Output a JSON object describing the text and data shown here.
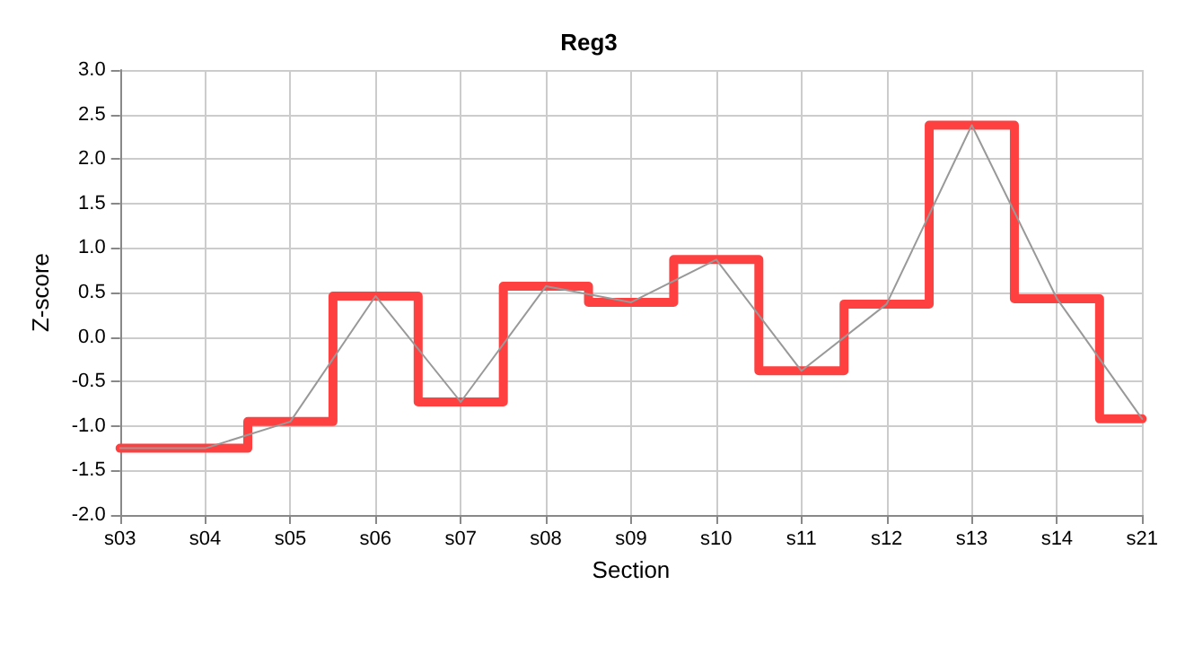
{
  "chart_data": {
    "type": "step",
    "title": "Reg3",
    "xlabel": "Section",
    "ylabel": "Z-score",
    "categories": [
      "s03",
      "s04",
      "s05",
      "s06",
      "s07",
      "s08",
      "s09",
      "s10",
      "s11",
      "s12",
      "s13",
      "s14",
      "s21"
    ],
    "series": [
      {
        "color": "#ff4040",
        "values": [
          -1.25,
          -1.25,
          -0.95,
          0.46,
          -0.73,
          0.57,
          0.39,
          0.87,
          -0.38,
          0.37,
          2.38,
          0.43,
          -0.92
        ]
      },
      {
        "type": "line",
        "color": "#999999",
        "values": [
          -1.25,
          -1.25,
          -0.95,
          0.46,
          -0.73,
          0.57,
          0.39,
          0.87,
          -0.38,
          0.37,
          2.38,
          0.43,
          -0.92
        ]
      }
    ],
    "ylim": [
      -2.0,
      3.0
    ],
    "yticks": [
      {
        "value": -2,
        "label": "-2.0"
      },
      {
        "value": -1.5,
        "label": "-1.5"
      },
      {
        "value": -1,
        "label": "-1.0"
      },
      {
        "value": -0.5,
        "label": "-0.5"
      },
      {
        "value": 0,
        "label": "0.0"
      },
      {
        "value": 0.5,
        "label": "0.5"
      },
      {
        "value": 1,
        "label": "1.0"
      },
      {
        "value": 1.5,
        "label": "1.5"
      },
      {
        "value": 2,
        "label": "2.0"
      },
      {
        "value": 2.5,
        "label": "2.5"
      },
      {
        "value": 3,
        "label": "3.0"
      }
    ],
    "grid": true,
    "marker": "none",
    "line_style": "solid"
  }
}
